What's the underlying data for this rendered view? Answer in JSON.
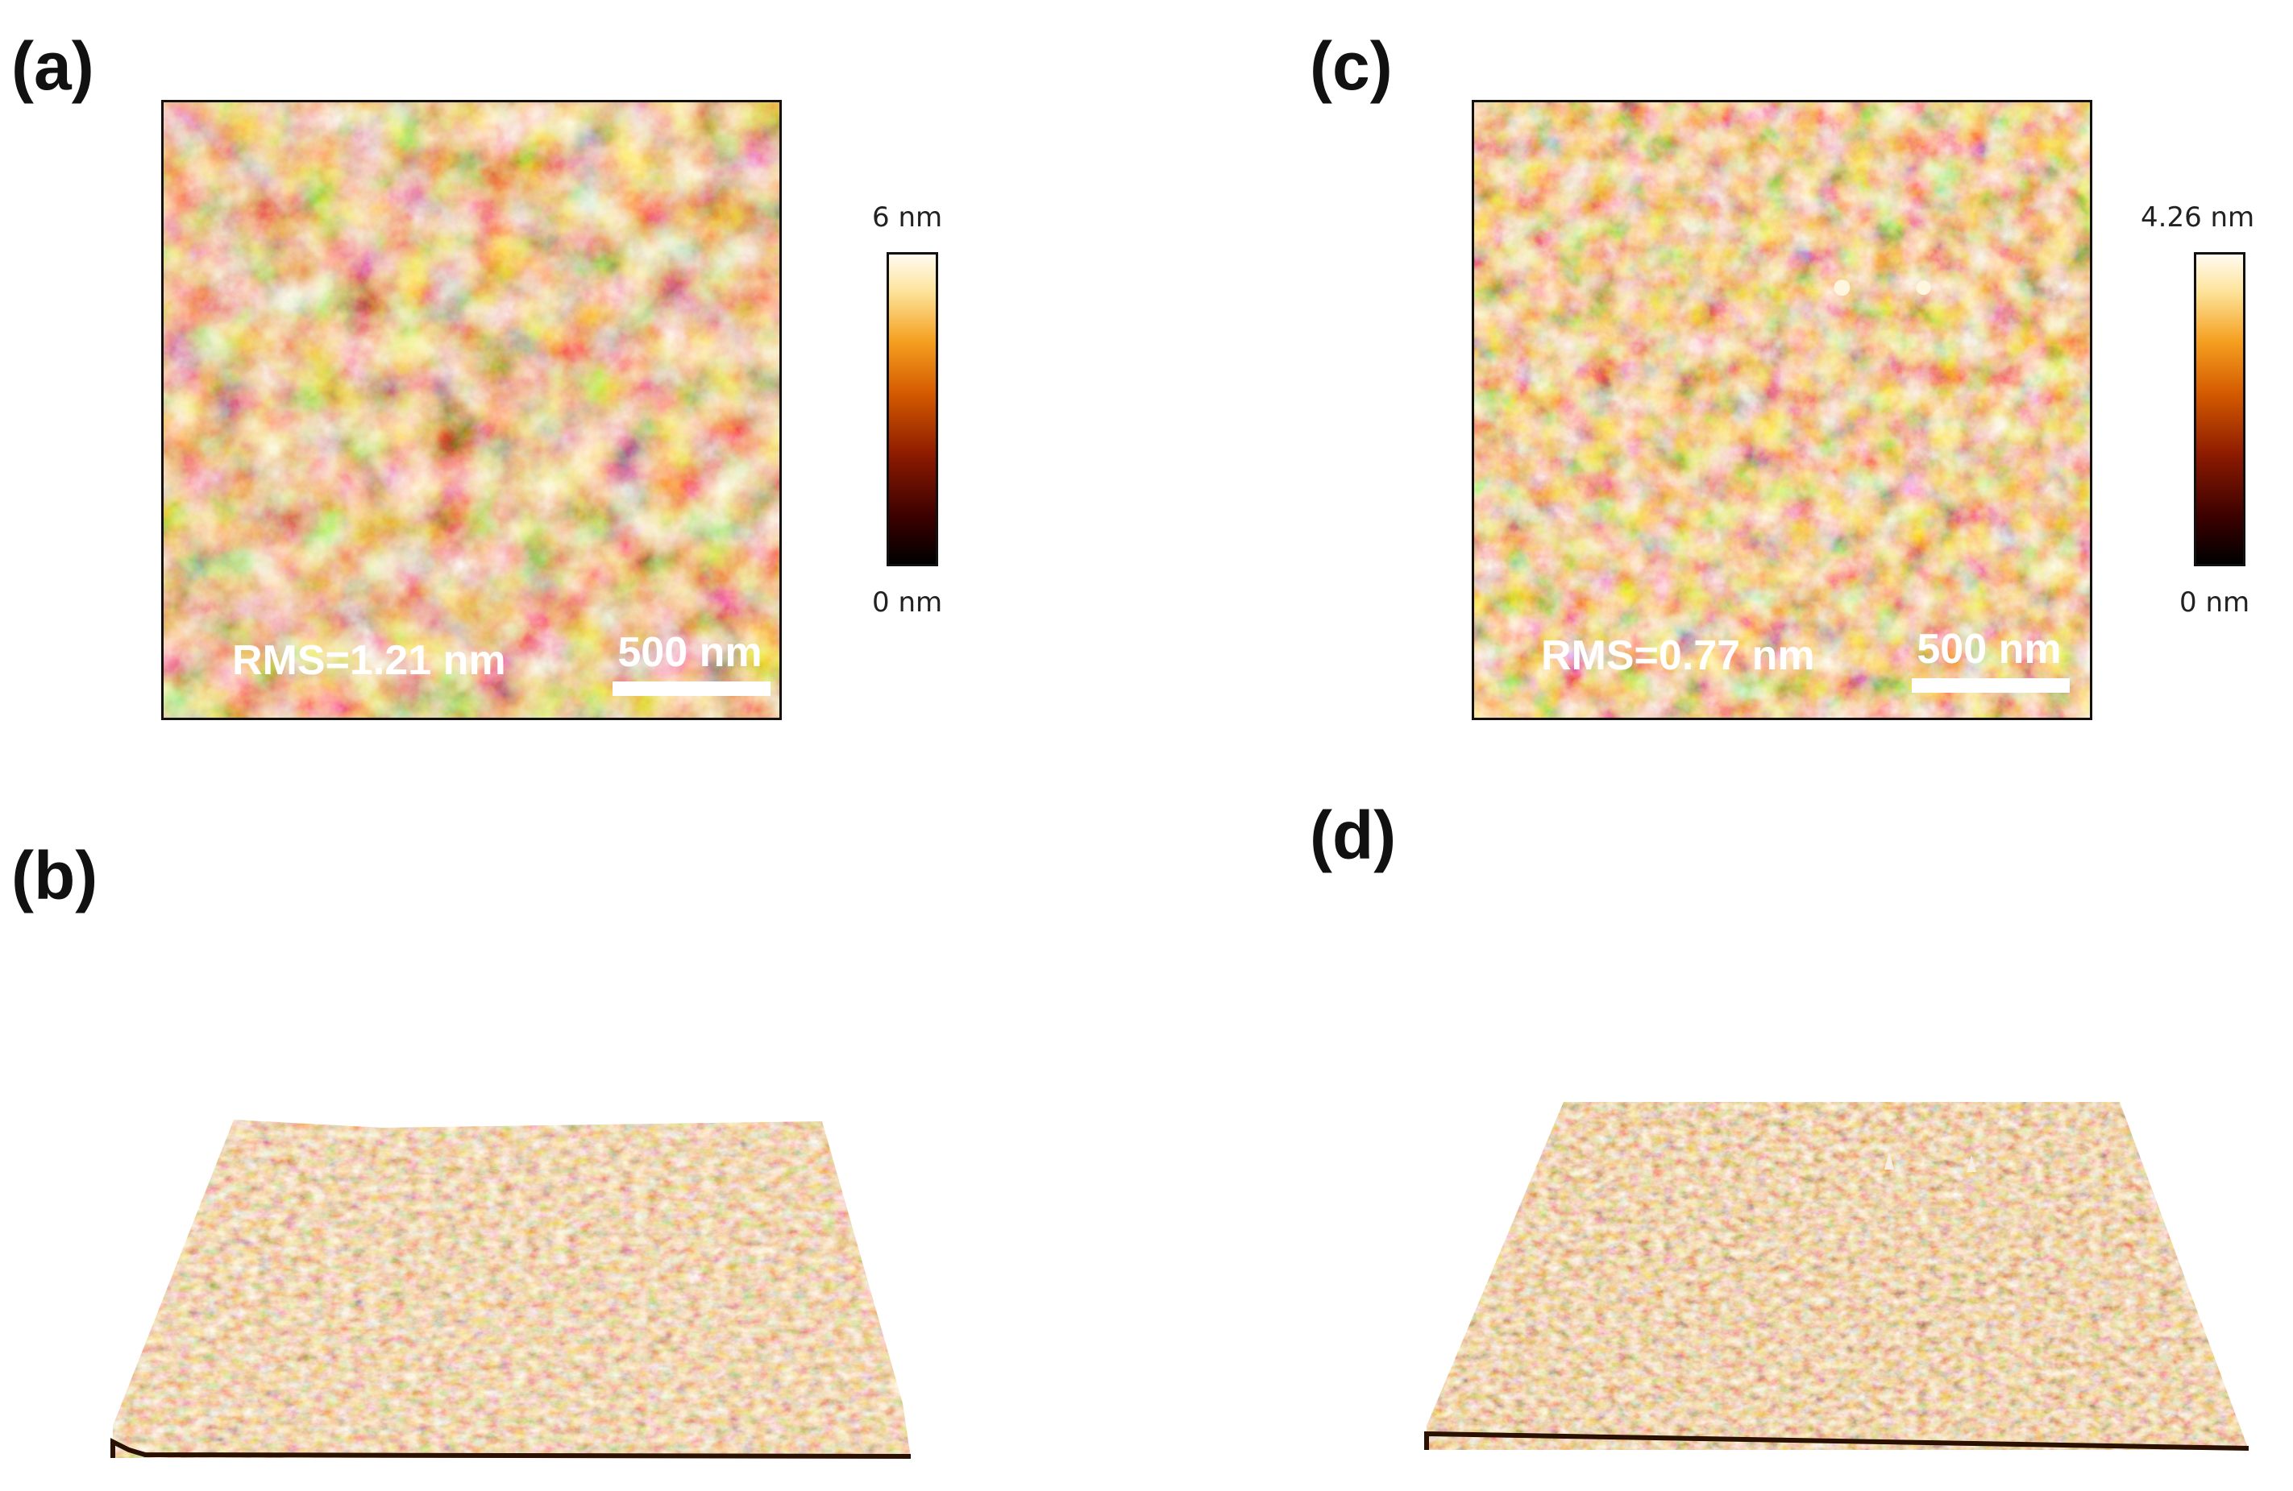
{
  "panels": {
    "a": {
      "label": "(a)",
      "rms": "RMS=1.21 nm",
      "scale_bar": "500 nm",
      "colorbar_max": "6 nm",
      "colorbar_min": "0 nm"
    },
    "b": {
      "label": "(b)"
    },
    "c": {
      "label": "(c)",
      "rms": "RMS=0.77 nm",
      "scale_bar": "500 nm",
      "colorbar_max": "4.26 nm",
      "colorbar_min": "0 nm"
    },
    "d": {
      "label": "(d)"
    }
  },
  "colors": {
    "dark": "#1a0300",
    "mid": "#b84a00",
    "light": "#f7b84a",
    "highlight": "#fff2c8"
  }
}
